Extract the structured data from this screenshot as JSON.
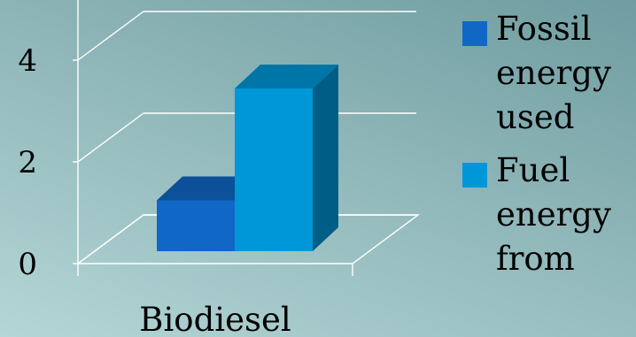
{
  "chart_data": {
    "type": "bar",
    "categories": [
      "Biodiesel"
    ],
    "series": [
      {
        "name": "Fossil energy used",
        "values": [
          1.0
        ],
        "color": "#1067c6"
      },
      {
        "name": "Fuel energy from",
        "values": [
          3.2
        ],
        "color": "#0097d8"
      }
    ],
    "yticks": [
      "0",
      "2",
      "4"
    ],
    "ylim": [
      0,
      4
    ],
    "grid": true,
    "legend_position": "right",
    "style": "3d-clustered-column"
  }
}
